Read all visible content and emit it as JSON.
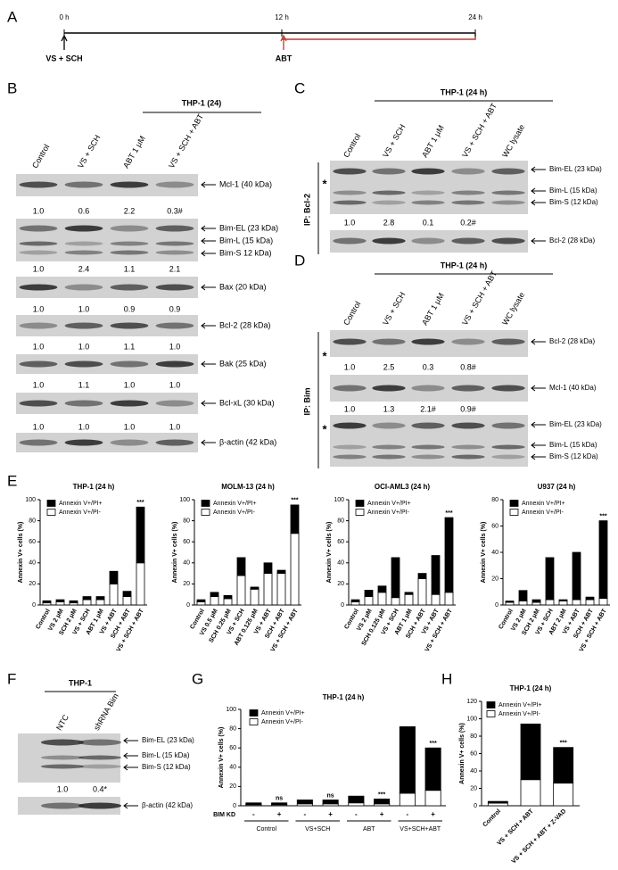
{
  "panel_labels": [
    "A",
    "B",
    "C",
    "D",
    "E",
    "F",
    "G",
    "H"
  ],
  "timeline": {
    "times": [
      "0 h",
      "12 h",
      "24 h"
    ],
    "treatments": [
      "VS + SCH",
      "ABT"
    ]
  },
  "blot_b": {
    "header": "THP-1 (24)",
    "lanes": [
      "Control",
      "VS + SCH",
      "ABT 1 μM",
      "VS + SCH + ABT"
    ],
    "rows": [
      {
        "bands": [
          "Mcl-1 (40 kDa)"
        ],
        "quant": [
          "1.0",
          "0.6",
          "2.2",
          "0.3#"
        ]
      },
      {
        "bands": [
          "Bim-EL (23 kDa)",
          "Bim-L (15 kDa)",
          "Bim-S 12 kDa)"
        ],
        "quant": [
          "1.0",
          "2.4",
          "1.1",
          "2.1"
        ]
      },
      {
        "bands": [
          "Bax (20 kDa)"
        ],
        "quant": [
          "1.0",
          "1.0",
          "0.9",
          "0.9"
        ]
      },
      {
        "bands": [
          "Bcl-2 (28 kDa)"
        ],
        "quant": [
          "1.0",
          "1.0",
          "1.1",
          "1.0"
        ]
      },
      {
        "bands": [
          "Bak (25 kDa)"
        ],
        "quant": [
          "1.0",
          "1.1",
          "1.0",
          "1.0"
        ]
      },
      {
        "bands": [
          "Bcl-xL (30 kDa)"
        ],
        "quant": [
          "1.0",
          "1.0",
          "1.0",
          "1.0"
        ]
      },
      {
        "bands": [
          "β-actin (42 kDa)"
        ]
      }
    ]
  },
  "blot_c": {
    "header": "THP-1 (24 h)",
    "lanes": [
      "Control",
      "VS + SCH",
      "ABT 1 μM",
      "VS + SCH + ABT",
      "WC lysate"
    ],
    "ip_label": "IP: Bcl-2",
    "markers": [
      "*"
    ],
    "rows": [
      {
        "bands": [
          "Bim-EL (23 kDa)",
          "Bim-L (15 kDa)",
          "Bim-S (12 kDa)"
        ],
        "quant": [
          "1.0",
          "2.8",
          "0.1",
          "0.2#"
        ]
      },
      {
        "bands": [
          "Bcl-2 (28 kDa)"
        ]
      }
    ]
  },
  "blot_d": {
    "header": "THP-1 (24 h)",
    "lanes": [
      "Control",
      "VS + SCH",
      "ABT 1 μM",
      "VS + SCH + ABT",
      "WC lysate"
    ],
    "ip_label": "IP: Bim",
    "markers": [
      "*",
      "*"
    ],
    "rows": [
      {
        "bands": [
          "Bcl-2 (28 kDa)"
        ],
        "quant": [
          "1.0",
          "2.5",
          "0.3",
          "0.8#"
        ]
      },
      {
        "bands": [
          "Mcl-1 (40 kDa)"
        ],
        "quant": [
          "1.0",
          "1.3",
          "2.1#",
          "0.9#"
        ]
      },
      {
        "bands": [
          "Bim-EL (23 kDa)",
          "Bim-L (15 kDa)",
          "Bim-S (12 kDa)"
        ]
      }
    ]
  },
  "blot_f": {
    "header": "THP-1",
    "lanes": [
      "NTC",
      "shRNA Bim"
    ],
    "rows": [
      {
        "bands": [
          "Bim-EL (23 kDa)",
          "Bim-L (15 kDa)",
          "Bim-S (12 kDa)"
        ],
        "quant": [
          "1.0",
          "0.4*"
        ]
      },
      {
        "bands": [
          "β-actin (42 kDa)"
        ]
      }
    ]
  },
  "chart_data": [
    {
      "type": "bar",
      "title": "THP-1 (24 h)",
      "ylabel": "Annexin V+ cells (%)",
      "ylim": [
        0,
        100
      ],
      "yticks": [
        0,
        20,
        40,
        60,
        80,
        100
      ],
      "categories": [
        "Control",
        "VS 2 μM",
        "SCH 2 μM",
        "VS + SCH",
        "ABT 1 μM",
        "VS + ABT",
        "SCH + ABT",
        "VS + SCH + ABT"
      ],
      "series": [
        {
          "name": "Annexin V+/PI+",
          "color": "#000000",
          "values": [
            2,
            2,
            2,
            3,
            3,
            12,
            5,
            53
          ]
        },
        {
          "name": "Annexin V+/PI-",
          "color": "#ffffff",
          "values": [
            2,
            3,
            2,
            5,
            5,
            20,
            8,
            40
          ]
        }
      ],
      "annotations": [
        null,
        null,
        null,
        null,
        null,
        null,
        null,
        "***"
      ]
    },
    {
      "type": "bar",
      "title": "MOLM-13 (24 h)",
      "ylabel": "Annexin V+ cells (%)",
      "ylim": [
        0,
        100
      ],
      "yticks": [
        0,
        20,
        40,
        60,
        80,
        100
      ],
      "categories": [
        "Control",
        "VS 0.5 μM",
        "SCH 0.25 μM",
        "VS + SCH",
        "ABT 0.125 μM",
        "VS + ABT",
        "SCH + ABT",
        "VS + SCH + ABT"
      ],
      "series": [
        {
          "name": "Annexin V+/PI+",
          "color": "#000000",
          "values": [
            2,
            4,
            3,
            17,
            2,
            10,
            3,
            27
          ]
        },
        {
          "name": "Annexin V+/PI-",
          "color": "#ffffff",
          "values": [
            3,
            8,
            6,
            28,
            15,
            30,
            30,
            68
          ]
        }
      ],
      "annotations": [
        null,
        null,
        null,
        null,
        null,
        null,
        null,
        "***"
      ]
    },
    {
      "type": "bar",
      "title": "OCI-AML3 (24 h)",
      "ylabel": "Annexin V+ cells (%)",
      "ylim": [
        0,
        100
      ],
      "yticks": [
        0,
        20,
        40,
        60,
        80,
        100
      ],
      "categories": [
        "Control",
        "VS 2 μM",
        "SCH 0.125 μM",
        "VS + SCH",
        "ABT 1 μM",
        "SCH + ABT",
        "VS + ABT",
        "VS + SCH + ABT"
      ],
      "series": [
        {
          "name": "Annexin V+/PI+",
          "color": "#000000",
          "values": [
            2,
            6,
            6,
            38,
            2,
            5,
            37,
            71
          ]
        },
        {
          "name": "Annexin V+/PI-",
          "color": "#ffffff",
          "values": [
            3,
            8,
            12,
            7,
            10,
            25,
            10,
            12
          ]
        }
      ],
      "annotations": [
        null,
        null,
        null,
        null,
        null,
        null,
        null,
        "***"
      ]
    },
    {
      "type": "bar",
      "title": "U937 (24 h)",
      "ylabel": "Annexin V+ cells (%)",
      "ylim": [
        0,
        80
      ],
      "yticks": [
        0,
        20,
        40,
        60,
        80
      ],
      "categories": [
        "Control",
        "VS 2 μM",
        "SCH 2 μM",
        "VS + SCH",
        "ABT 2 μM",
        "VS + ABT",
        "SCH + ABT",
        "VS + SCH + ABT"
      ],
      "series": [
        {
          "name": "Annexin V+/PI+",
          "color": "#000000",
          "values": [
            1,
            8,
            2,
            32,
            1,
            36,
            2,
            59
          ]
        },
        {
          "name": "Annexin V+/PI-",
          "color": "#ffffff",
          "values": [
            2,
            3,
            2,
            4,
            3,
            4,
            4,
            5
          ]
        }
      ],
      "annotations": [
        null,
        null,
        null,
        null,
        null,
        null,
        null,
        "***"
      ]
    },
    {
      "type": "bar",
      "title": "THP-1 (24 h)",
      "ylabel": "Annexin V+ cells (%)",
      "ylim": [
        0,
        100
      ],
      "yticks": [
        0,
        20,
        40,
        60,
        80,
        100
      ],
      "categories": [
        "-",
        "+",
        "-",
        "+",
        "-",
        "+",
        "-",
        "+"
      ],
      "groups": [
        "Control",
        "VS+SCH",
        "ABT",
        "VS+SCH+ABT"
      ],
      "row_label": "BIM KD",
      "series": [
        {
          "name": "Annexin V+/PI+",
          "color": "#000000",
          "values": [
            2,
            2,
            4,
            4,
            7,
            5,
            69,
            44
          ]
        },
        {
          "name": "Annexin V+/PI-",
          "color": "#ffffff",
          "values": [
            1,
            1,
            2,
            2,
            3,
            2,
            13,
            16
          ]
        }
      ],
      "annotations": [
        null,
        "ns",
        null,
        "ns",
        null,
        "***",
        null,
        "***"
      ]
    },
    {
      "type": "bar",
      "title": "THP-1 (24 h)",
      "ylabel": "Annexin V+ cells (%)",
      "ylim": [
        0,
        120
      ],
      "yticks": [
        0,
        20,
        40,
        60,
        80,
        100,
        120
      ],
      "categories": [
        "Control",
        "VS + SCH + ABT",
        "VS + SCH + ABT + Z-VAD"
      ],
      "series": [
        {
          "name": "Annexin V+/PI+",
          "color": "#000000",
          "values": [
            2,
            64,
            41
          ]
        },
        {
          "name": "Annexin V+/PI-",
          "color": "#ffffff",
          "values": [
            3,
            30,
            26
          ]
        }
      ],
      "annotations": [
        null,
        null,
        "***"
      ]
    }
  ]
}
